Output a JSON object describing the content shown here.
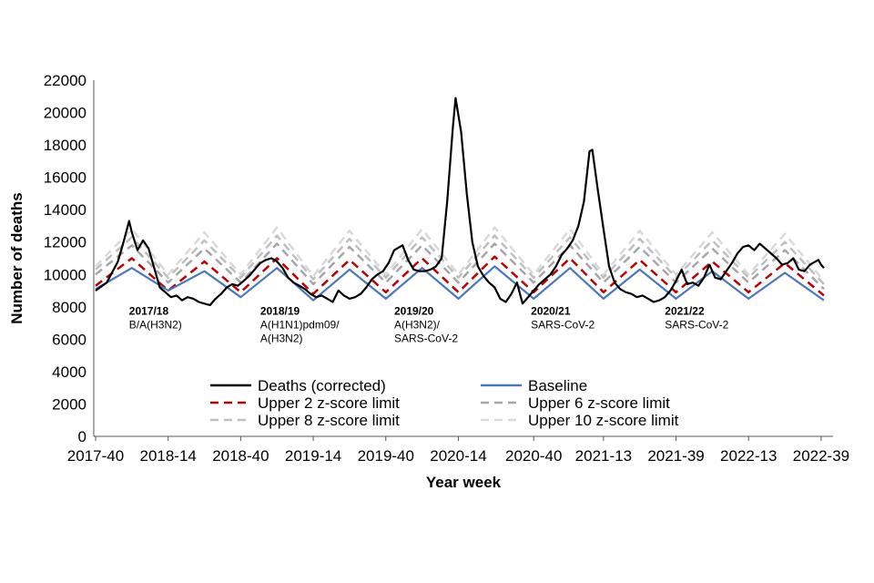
{
  "chart_data": {
    "type": "line",
    "xlabel": "Year week",
    "ylabel": "Number of deaths",
    "ylim": [
      0,
      22000
    ],
    "yticks": [
      0,
      2000,
      4000,
      6000,
      8000,
      10000,
      12000,
      14000,
      16000,
      18000,
      20000,
      22000
    ],
    "x_range_weeks": [
      0,
      261
    ],
    "x_ticks": [
      {
        "label": "2017-40",
        "week": 0
      },
      {
        "label": "2018-14",
        "week": 26
      },
      {
        "label": "2018-40",
        "week": 52
      },
      {
        "label": "2019-14",
        "week": 78
      },
      {
        "label": "2019-40",
        "week": 104
      },
      {
        "label": "2020-14",
        "week": 130
      },
      {
        "label": "2020-40",
        "week": 157
      },
      {
        "label": "2021-13",
        "week": 182
      },
      {
        "label": "2021-39",
        "week": 208
      },
      {
        "label": "2022-13",
        "week": 234
      },
      {
        "label": "2022-39",
        "week": 260
      }
    ],
    "grid": false,
    "legend_position": "bottom-inside",
    "series": [
      {
        "name": "Upper 10 z-score limit",
        "color": "#d9d9d9",
        "style": "dashed",
        "points": [
          [
            0,
            10500
          ],
          [
            13,
            12800
          ],
          [
            26,
            10000
          ],
          [
            39,
            12600
          ],
          [
            52,
            10000
          ],
          [
            65,
            12900
          ],
          [
            78,
            9900
          ],
          [
            91,
            12700
          ],
          [
            104,
            10000
          ],
          [
            117,
            12800
          ],
          [
            130,
            10000
          ],
          [
            143,
            12900
          ],
          [
            157,
            10000
          ],
          [
            170,
            12800
          ],
          [
            182,
            10000
          ],
          [
            195,
            12700
          ],
          [
            208,
            10000
          ],
          [
            221,
            12600
          ],
          [
            234,
            10000
          ],
          [
            247,
            12500
          ],
          [
            261,
            9600
          ]
        ]
      },
      {
        "name": "Upper 8 z-score limit",
        "color": "#bfbfbf",
        "style": "dashed",
        "points": [
          [
            0,
            10300
          ],
          [
            13,
            12300
          ],
          [
            26,
            9800
          ],
          [
            39,
            12100
          ],
          [
            52,
            9800
          ],
          [
            65,
            12400
          ],
          [
            78,
            9700
          ],
          [
            91,
            12200
          ],
          [
            104,
            9800
          ],
          [
            117,
            12300
          ],
          [
            130,
            9800
          ],
          [
            143,
            12400
          ],
          [
            157,
            9800
          ],
          [
            170,
            12300
          ],
          [
            182,
            9800
          ],
          [
            195,
            12200
          ],
          [
            208,
            9800
          ],
          [
            221,
            12100
          ],
          [
            234,
            9800
          ],
          [
            247,
            12000
          ],
          [
            261,
            9400
          ]
        ]
      },
      {
        "name": "Upper 6 z-score limit",
        "color": "#a6a6a6",
        "style": "dashed",
        "points": [
          [
            0,
            10000
          ],
          [
            13,
            11800
          ],
          [
            26,
            9500
          ],
          [
            39,
            11600
          ],
          [
            52,
            9500
          ],
          [
            65,
            11900
          ],
          [
            78,
            9400
          ],
          [
            91,
            11700
          ],
          [
            104,
            9500
          ],
          [
            117,
            11800
          ],
          [
            130,
            9500
          ],
          [
            143,
            11900
          ],
          [
            157,
            9500
          ],
          [
            170,
            11800
          ],
          [
            182,
            9500
          ],
          [
            195,
            11700
          ],
          [
            208,
            9500
          ],
          [
            221,
            11600
          ],
          [
            234,
            9500
          ],
          [
            247,
            11500
          ],
          [
            261,
            9100
          ]
        ]
      },
      {
        "name": "Upper 2 z-score limit",
        "color": "#c00000",
        "style": "dashed",
        "points": [
          [
            0,
            9300
          ],
          [
            13,
            11000
          ],
          [
            26,
            9000
          ],
          [
            39,
            10800
          ],
          [
            52,
            8900
          ],
          [
            65,
            11000
          ],
          [
            78,
            8800
          ],
          [
            91,
            10900
          ],
          [
            104,
            8900
          ],
          [
            117,
            11000
          ],
          [
            130,
            8900
          ],
          [
            143,
            11100
          ],
          [
            157,
            8900
          ],
          [
            170,
            11000
          ],
          [
            182,
            8900
          ],
          [
            195,
            10900
          ],
          [
            208,
            8900
          ],
          [
            221,
            10800
          ],
          [
            234,
            8900
          ],
          [
            247,
            10700
          ],
          [
            261,
            8700
          ]
        ]
      },
      {
        "name": "Baseline",
        "color": "#4a78bd",
        "style": "solid",
        "points": [
          [
            0,
            9100
          ],
          [
            13,
            10400
          ],
          [
            26,
            9000
          ],
          [
            39,
            10200
          ],
          [
            52,
            8600
          ],
          [
            65,
            10400
          ],
          [
            78,
            8400
          ],
          [
            91,
            10300
          ],
          [
            104,
            8500
          ],
          [
            117,
            10400
          ],
          [
            130,
            8500
          ],
          [
            143,
            10500
          ],
          [
            157,
            8500
          ],
          [
            170,
            10400
          ],
          [
            182,
            8500
          ],
          [
            195,
            10300
          ],
          [
            208,
            8500
          ],
          [
            221,
            10200
          ],
          [
            234,
            8500
          ],
          [
            247,
            10100
          ],
          [
            261,
            8400
          ]
        ]
      },
      {
        "name": "Deaths (corrected)",
        "color": "#000000",
        "style": "solid",
        "points": [
          [
            0,
            9000
          ],
          [
            4,
            9500
          ],
          [
            8,
            10800
          ],
          [
            10,
            12000
          ],
          [
            12,
            13300
          ],
          [
            13,
            12600
          ],
          [
            15,
            11500
          ],
          [
            17,
            12100
          ],
          [
            19,
            11600
          ],
          [
            21,
            10400
          ],
          [
            23,
            9200
          ],
          [
            25,
            8900
          ],
          [
            27,
            8600
          ],
          [
            29,
            8700
          ],
          [
            31,
            8400
          ],
          [
            33,
            8600
          ],
          [
            35,
            8500
          ],
          [
            37,
            8300
          ],
          [
            39,
            8200
          ],
          [
            41,
            8100
          ],
          [
            43,
            8500
          ],
          [
            45,
            8800
          ],
          [
            47,
            9200
          ],
          [
            49,
            9400
          ],
          [
            51,
            9300
          ],
          [
            53,
            9600
          ],
          [
            55,
            9900
          ],
          [
            57,
            10300
          ],
          [
            59,
            10700
          ],
          [
            61,
            10900
          ],
          [
            63,
            11000
          ],
          [
            65,
            10800
          ],
          [
            67,
            10400
          ],
          [
            69,
            9800
          ],
          [
            71,
            9500
          ],
          [
            73,
            9300
          ],
          [
            75,
            9100
          ],
          [
            77,
            8800
          ],
          [
            79,
            8600
          ],
          [
            81,
            8700
          ],
          [
            83,
            8500
          ],
          [
            85,
            8300
          ],
          [
            87,
            9000
          ],
          [
            89,
            8700
          ],
          [
            91,
            8500
          ],
          [
            93,
            8600
          ],
          [
            95,
            8800
          ],
          [
            97,
            9200
          ],
          [
            99,
            9700
          ],
          [
            101,
            10000
          ],
          [
            103,
            10200
          ],
          [
            105,
            10700
          ],
          [
            107,
            11500
          ],
          [
            109,
            11700
          ],
          [
            110,
            11800
          ],
          [
            112,
            10900
          ],
          [
            114,
            10300
          ],
          [
            116,
            10200
          ],
          [
            118,
            10200
          ],
          [
            120,
            10300
          ],
          [
            122,
            10500
          ],
          [
            124,
            11000
          ],
          [
            126,
            14500
          ],
          [
            128,
            19000
          ],
          [
            129,
            20900
          ],
          [
            131,
            18800
          ],
          [
            133,
            15000
          ],
          [
            135,
            12000
          ],
          [
            137,
            10500
          ],
          [
            139,
            9900
          ],
          [
            141,
            9500
          ],
          [
            143,
            9200
          ],
          [
            145,
            8500
          ],
          [
            147,
            8300
          ],
          [
            149,
            8800
          ],
          [
            151,
            9500
          ],
          [
            153,
            8200
          ],
          [
            155,
            8600
          ],
          [
            157,
            9000
          ],
          [
            159,
            9400
          ],
          [
            161,
            9700
          ],
          [
            163,
            10000
          ],
          [
            165,
            10500
          ],
          [
            167,
            11200
          ],
          [
            169,
            11600
          ],
          [
            171,
            12100
          ],
          [
            173,
            13000
          ],
          [
            175,
            14500
          ],
          [
            177,
            17600
          ],
          [
            178,
            17700
          ],
          [
            180,
            15200
          ],
          [
            182,
            12800
          ],
          [
            184,
            10500
          ],
          [
            186,
            9500
          ],
          [
            188,
            9100
          ],
          [
            190,
            8900
          ],
          [
            192,
            8800
          ],
          [
            194,
            8600
          ],
          [
            196,
            8700
          ],
          [
            198,
            8500
          ],
          [
            200,
            8300
          ],
          [
            202,
            8400
          ],
          [
            204,
            8600
          ],
          [
            206,
            9000
          ],
          [
            208,
            9600
          ],
          [
            210,
            10300
          ],
          [
            212,
            9400
          ],
          [
            214,
            9500
          ],
          [
            216,
            9300
          ],
          [
            218,
            9800
          ],
          [
            220,
            10600
          ],
          [
            222,
            9800
          ],
          [
            224,
            9700
          ],
          [
            226,
            10200
          ],
          [
            228,
            10700
          ],
          [
            230,
            11300
          ],
          [
            232,
            11700
          ],
          [
            234,
            11800
          ],
          [
            236,
            11500
          ],
          [
            238,
            11900
          ],
          [
            240,
            11600
          ],
          [
            242,
            11300
          ],
          [
            244,
            11000
          ],
          [
            246,
            10600
          ],
          [
            248,
            10700
          ],
          [
            250,
            11000
          ],
          [
            252,
            10300
          ],
          [
            254,
            10200
          ],
          [
            256,
            10600
          ],
          [
            258,
            10800
          ],
          [
            259,
            10900
          ],
          [
            260,
            10600
          ],
          [
            261,
            10400
          ]
        ]
      }
    ],
    "annotations": [
      {
        "season": "2017/18",
        "text": [
          "B/A(H3N2)"
        ],
        "week": 12,
        "y": 7800
      },
      {
        "season": "2018/19",
        "text": [
          "A(H1N1)pdm09/",
          "A(H3N2)"
        ],
        "week": 59,
        "y": 7800
      },
      {
        "season": "2019/20",
        "text": [
          "A(H3N2)/",
          "SARS-CoV-2"
        ],
        "week": 107,
        "y": 7800
      },
      {
        "season": "2020/21",
        "text": [
          "SARS-CoV-2"
        ],
        "week": 156,
        "y": 7800
      },
      {
        "season": "2021/22",
        "text": [
          "SARS-CoV-2"
        ],
        "week": 204,
        "y": 7800
      }
    ],
    "legend": [
      {
        "label": "Deaths (corrected)",
        "color": "#000000",
        "style": "solid"
      },
      {
        "label": "Baseline",
        "color": "#4a78bd",
        "style": "solid"
      },
      {
        "label": "Upper 2 z-score limit",
        "color": "#c00000",
        "style": "dashed"
      },
      {
        "label": "Upper 6 z-score limit",
        "color": "#a6a6a6",
        "style": "dashed"
      },
      {
        "label": "Upper 8 z-score limit",
        "color": "#bfbfbf",
        "style": "dashed"
      },
      {
        "label": "Upper 10 z-score limit",
        "color": "#d9d9d9",
        "style": "dashed"
      }
    ]
  }
}
